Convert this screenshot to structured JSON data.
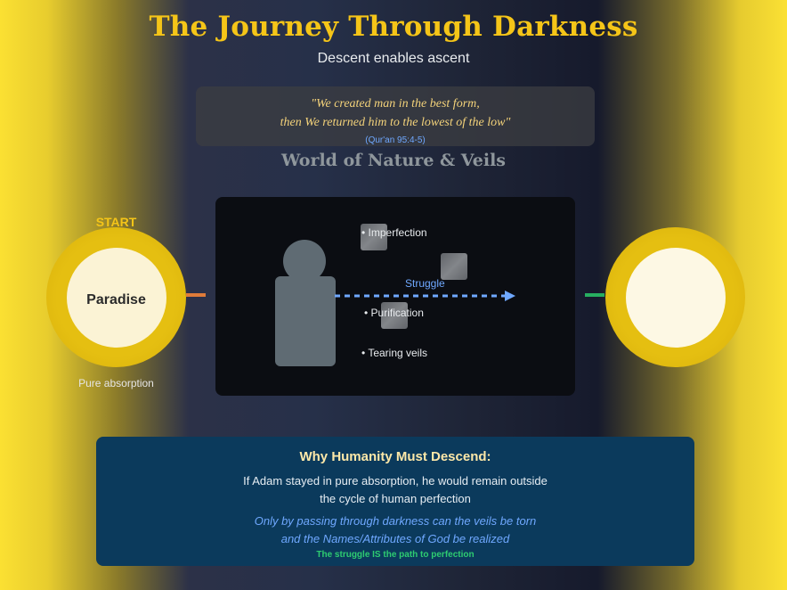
{
  "header": {
    "title": "The Journey Through Darkness",
    "subtitle": "Descent enables ascent"
  },
  "quote": {
    "line1": "\"We created man in the best form,",
    "line2": "then We returned him to the lowest of the low\"",
    "reference": "(Qur'an 95:4-5)"
  },
  "world": {
    "title": "World of Nature & Veils",
    "items": [
      "• Imperfection",
      "• Purification",
      "• Tearing veils"
    ],
    "arrow_label": "Struggle"
  },
  "start_node": {
    "tag": "START",
    "label": "Paradise",
    "caption": "Pure absorption"
  },
  "why": {
    "title": "Why Humanity Must Descend:",
    "line1": "If Adam stayed in pure absorption, he would remain outside",
    "line2": "the cycle of human perfection",
    "italic1": "Only by passing through darkness can the veils be torn",
    "italic2": "and the Names/Attributes of God be realized",
    "footer": "The struggle IS the path to perfection"
  },
  "colors": {
    "gold": "#f5c518",
    "circle_gold": "#e5bf11",
    "circle_light": "#fbf3d5",
    "left_connector": "#e07b39",
    "right_connector": "#27ae60",
    "struggle_blue": "#6fa8ff",
    "figure_gray": "#5f6b73"
  }
}
